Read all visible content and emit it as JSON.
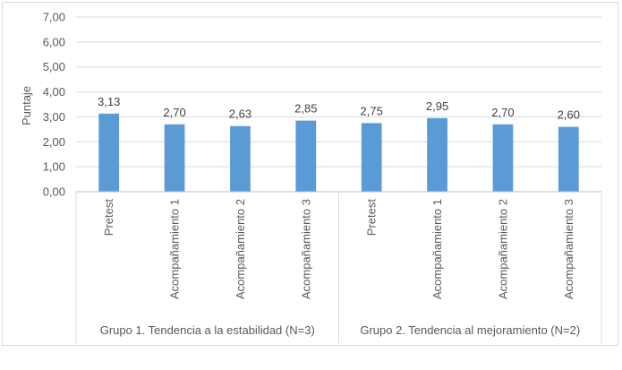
{
  "chart_data": {
    "type": "bar",
    "ylabel": "Puntaje",
    "ylim": [
      0,
      7
    ],
    "y_ticks": [
      "0,00",
      "1,00",
      "2,00",
      "3,00",
      "4,00",
      "5,00",
      "6,00",
      "7,00"
    ],
    "grid": true,
    "bar_color": "#5b9bd5",
    "groups": [
      {
        "label": "Grupo 1. Tendencia a la estabilidad (N=3)",
        "categories": [
          "Pretest",
          "Acompañamiento 1",
          "Acompañamiento 2",
          "Acompañamiento 3"
        ],
        "values": [
          3.13,
          2.7,
          2.63,
          2.85
        ],
        "value_labels": [
          "3,13",
          "2,70",
          "2,63",
          "2,85"
        ]
      },
      {
        "label": "Grupo 2. Tendencia al mejoramiento (N=2)",
        "categories": [
          "Pretest",
          "Acompañamiento 1",
          "Acompañamiento 2",
          "Acompañamiento 3"
        ],
        "values": [
          2.75,
          2.95,
          2.7,
          2.6
        ],
        "value_labels": [
          "2,75",
          "2,95",
          "2,70",
          "2,60"
        ]
      }
    ]
  }
}
